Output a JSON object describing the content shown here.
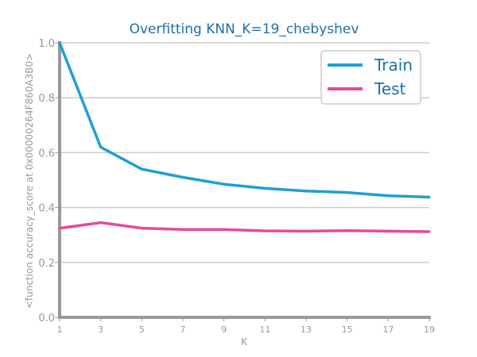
{
  "chart_data": {
    "type": "line",
    "title": "Overfitting KNN_K=19_chebyshev",
    "xlabel": "K",
    "ylabel": "<function accuracy_score at 0x00000264F860A3B0>",
    "x": [
      1,
      3,
      5,
      7,
      9,
      11,
      13,
      15,
      17,
      19
    ],
    "xticks": [
      "1",
      "3",
      "5",
      "7",
      "9",
      "11",
      "13",
      "15",
      "17",
      "19"
    ],
    "yticks": [
      "0.0",
      "0.2",
      "0.4",
      "0.6",
      "0.8",
      "1.0"
    ],
    "xlim": [
      1,
      19
    ],
    "ylim": [
      0,
      1
    ],
    "grid": "horizontal",
    "legend_position": "top-right",
    "series": [
      {
        "name": "Train",
        "color": "#1f9fd6",
        "values": [
          1.0,
          0.62,
          0.54,
          0.51,
          0.485,
          0.47,
          0.46,
          0.455,
          0.443,
          0.438
        ]
      },
      {
        "name": "Test",
        "color": "#e8489c",
        "values": [
          0.325,
          0.345,
          0.325,
          0.32,
          0.32,
          0.315,
          0.314,
          0.316,
          0.314,
          0.312
        ]
      }
    ]
  }
}
